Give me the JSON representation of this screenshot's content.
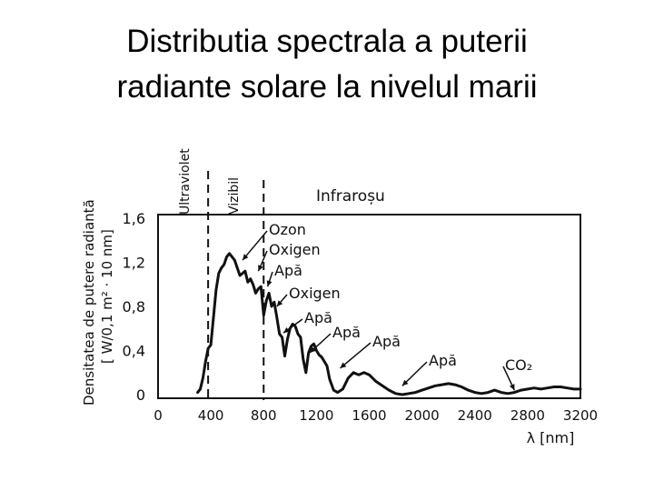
{
  "title_line1": "Distributia spectrala a puterii",
  "title_line2": "radiante solare la nivelul marii",
  "chart_data": {
    "type": "line",
    "xlabel": "λ [nm]",
    "ylabel_line1": "Densitatea de putere radiantă",
    "ylabel_line2": "[ W/0,1 m² · 10 nm]",
    "xlim": [
      0,
      3200
    ],
    "ylim": [
      0,
      1.6
    ],
    "x_ticks": [
      "0",
      "400",
      "800",
      "1200",
      "1600",
      "2000",
      "2400",
      "2800",
      "3200"
    ],
    "y_ticks": [
      "0",
      "0,4",
      "0,8",
      "1,2",
      "1,6"
    ],
    "regions": {
      "ultraviolet": "Ultraviolet",
      "visible": "Vizibil",
      "infrared": "Infraroșu"
    },
    "region_boundaries_nm": [
      400,
      800
    ],
    "annotations": [
      {
        "label": "Ozon",
        "x": 640,
        "y": 1.22
      },
      {
        "label": "Oxigen",
        "x": 760,
        "y": 1.12
      },
      {
        "label": "Apă",
        "x": 830,
        "y": 0.98
      },
      {
        "label": "Oxigen",
        "x": 900,
        "y": 0.8
      },
      {
        "label": "Apă",
        "x": 950,
        "y": 0.56
      },
      {
        "label": "Apă",
        "x": 1150,
        "y": 0.38
      },
      {
        "label": "Apă",
        "x": 1380,
        "y": 0.24
      },
      {
        "label": "Apă",
        "x": 1850,
        "y": 0.08
      },
      {
        "label": "CO₂",
        "x": 2700,
        "y": 0.04
      }
    ],
    "series": [
      {
        "x": [
          300,
          320,
          340,
          360,
          380,
          400,
          420,
          440,
          460,
          480,
          500,
          520,
          540,
          560,
          580,
          600,
          620,
          640,
          660,
          680,
          700,
          720,
          740,
          760,
          780,
          800,
          820,
          840,
          860,
          880,
          900,
          920,
          940,
          960,
          980,
          1000,
          1020,
          1040,
          1060,
          1080,
          1100,
          1120,
          1140,
          1160,
          1180,
          1200,
          1220,
          1240,
          1260,
          1280,
          1300,
          1330,
          1360,
          1400,
          1440,
          1480,
          1520,
          1560,
          1600,
          1650,
          1700,
          1750,
          1800,
          1850,
          1900,
          1950,
          2000,
          2050,
          2100,
          2150,
          2200,
          2250,
          2300,
          2350,
          2400,
          2450,
          2500,
          2550,
          2600,
          2650,
          2700,
          2750,
          2800,
          2850,
          2900,
          2950,
          3000,
          3050,
          3100,
          3150,
          3200
        ],
        "y": [
          0.02,
          0.05,
          0.15,
          0.3,
          0.42,
          0.45,
          0.7,
          0.95,
          1.1,
          1.15,
          1.18,
          1.25,
          1.28,
          1.25,
          1.22,
          1.15,
          1.08,
          1.1,
          1.12,
          1.02,
          1.05,
          1.0,
          0.92,
          0.96,
          0.98,
          0.72,
          0.85,
          0.92,
          0.8,
          0.84,
          0.7,
          0.55,
          0.52,
          0.35,
          0.5,
          0.6,
          0.64,
          0.62,
          0.55,
          0.52,
          0.32,
          0.2,
          0.38,
          0.44,
          0.46,
          0.4,
          0.36,
          0.34,
          0.3,
          0.26,
          0.14,
          0.04,
          0.02,
          0.05,
          0.15,
          0.2,
          0.18,
          0.2,
          0.18,
          0.12,
          0.08,
          0.04,
          0.01,
          0.0,
          0.01,
          0.02,
          0.04,
          0.06,
          0.08,
          0.09,
          0.1,
          0.09,
          0.07,
          0.04,
          0.02,
          0.01,
          0.02,
          0.04,
          0.02,
          0.01,
          0.02,
          0.04,
          0.05,
          0.06,
          0.05,
          0.06,
          0.07,
          0.07,
          0.06,
          0.05,
          0.05
        ]
      }
    ]
  }
}
